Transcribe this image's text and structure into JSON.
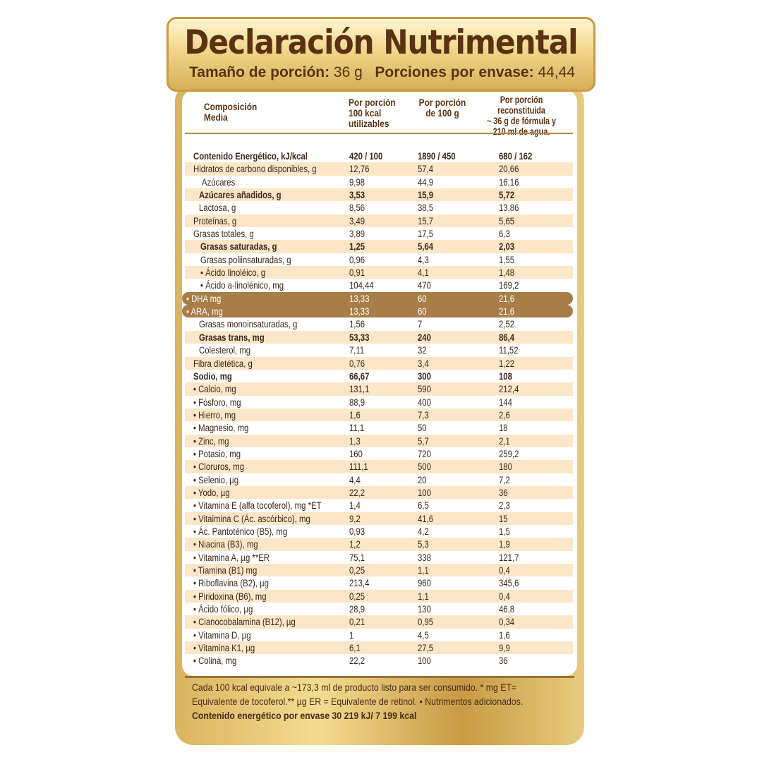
{
  "header": {
    "title": "Declaración Nutrimental",
    "portion_label": "Tamaño de porción:",
    "portion_value": "36 g",
    "servings_label": "Porciones por envase:",
    "servings_value": "44,44"
  },
  "columns": {
    "c0": [
      "Composición",
      "Media"
    ],
    "c1": [
      "Por porción",
      "100 kcal",
      "utilizables"
    ],
    "c2": [
      "Por porción",
      "de 100 g"
    ],
    "c3": [
      "Por porción reconstituida",
      "~ 36 g de fórmula y",
      "210 ml de agua."
    ]
  },
  "rows": [
    {
      "name": "Contenido Energético, kJ/kcal",
      "v1": "420 / 100",
      "v2": "1890 / 450",
      "v3": "680 / 162",
      "style": "bold",
      "indent": 0
    },
    {
      "name": "Hidratos de carbono disponibles, g",
      "v1": "12,76",
      "v2": "57,4",
      "v3": "20,66",
      "style": "shade",
      "indent": 0
    },
    {
      "name": "Azúcares",
      "v1": "9,98",
      "v2": "44,9",
      "v3": "16,16",
      "style": "",
      "indent": 12
    },
    {
      "name": "Azúcares añadidos, g",
      "v1": "3,53",
      "v2": "15,9",
      "v3": "5,72",
      "style": "shade bold",
      "indent": 8
    },
    {
      "name": "Lactosa, g",
      "v1": "8,56",
      "v2": "38,5",
      "v3": "13,86",
      "style": "",
      "indent": 8
    },
    {
      "name": "Proteínas, g",
      "v1": "3,49",
      "v2": "15,7",
      "v3": "5,65",
      "style": "shade",
      "indent": 0
    },
    {
      "name": "Grasas totales, g",
      "v1": "3,89",
      "v2": "17,5",
      "v3": "6,3",
      "style": "",
      "indent": 0
    },
    {
      "name": "Grasas saturadas, g",
      "v1": "1,25",
      "v2": "5,64",
      "v3": "2,03",
      "style": "shade bold",
      "indent": 10
    },
    {
      "name": "Grasas poliinsaturadas, g",
      "v1": "0,96",
      "v2": "4,3",
      "v3": "1,55",
      "style": "",
      "indent": 10
    },
    {
      "name": "• Ácido linoléico, g",
      "v1": "0,91",
      "v2": "4,1",
      "v3": "1,48",
      "style": "shade",
      "indent": 10
    },
    {
      "name": "• Ácido a-linolénico, mg",
      "v1": "104,44",
      "v2": "470",
      "v3": "169,2",
      "style": "",
      "indent": 10
    },
    {
      "name": "•  DHA mg",
      "v1": "13,33",
      "v2": "60",
      "v3": "21,6",
      "style": "pill",
      "indent": 0
    },
    {
      "name": "•  ARA, mg",
      "v1": "13,33",
      "v2": "60",
      "v3": "21,6",
      "style": "pill",
      "indent": 0
    },
    {
      "name": "Grasas monoinsaturadas, g",
      "v1": "1,56",
      "v2": "7",
      "v3": "2,52",
      "style": "",
      "indent": 8
    },
    {
      "name": "Grasas trans, mg",
      "v1": "53,33",
      "v2": "240",
      "v3": "86,4",
      "style": "shade bold",
      "indent": 8
    },
    {
      "name": "Colesterol, mg",
      "v1": "7,11",
      "v2": "32",
      "v3": "11,52",
      "style": "",
      "indent": 8
    },
    {
      "name": "Fibra dietética, g",
      "v1": "0,76",
      "v2": "3,4",
      "v3": "1,22",
      "style": "shade",
      "indent": 0
    },
    {
      "name": "Sodio, mg",
      "v1": "66,67",
      "v2": "300",
      "v3": "108",
      "style": "bold",
      "indent": 0
    },
    {
      "name": "• Calcio, mg",
      "v1": "131,1",
      "v2": "590",
      "v3": "212,4",
      "style": "shade",
      "indent": 0
    },
    {
      "name": "• Fósforo, mg",
      "v1": "88,9",
      "v2": "400",
      "v3": "144",
      "style": "",
      "indent": 0
    },
    {
      "name": "• Hierro, mg",
      "v1": "1,6",
      "v2": "7,3",
      "v3": "2,6",
      "style": "shade",
      "indent": 0
    },
    {
      "name": "• Magnesio, mg",
      "v1": "11,1",
      "v2": "50",
      "v3": "18",
      "style": "",
      "indent": 0
    },
    {
      "name": "• Zinc, mg",
      "v1": "1,3",
      "v2": "5,7",
      "v3": "2,1",
      "style": "shade",
      "indent": 0
    },
    {
      "name": "• Potasio, mg",
      "v1": "160",
      "v2": "720",
      "v3": "259,2",
      "style": "",
      "indent": 0
    },
    {
      "name": "• Cloruros, mg",
      "v1": "111,1",
      "v2": "500",
      "v3": "180",
      "style": "shade",
      "indent": 0
    },
    {
      "name": "• Selenio, µg",
      "v1": "4,4",
      "v2": "20",
      "v3": "7,2",
      "style": "",
      "indent": 0
    },
    {
      "name": "• Yodo, µg",
      "v1": "22,2",
      "v2": "100",
      "v3": "36",
      "style": "shade",
      "indent": 0
    },
    {
      "name": "• Vitamina E (alfa tocoferol), mg *ET",
      "v1": "1,4",
      "v2": "6,5",
      "v3": "2,3",
      "style": "",
      "indent": 0
    },
    {
      "name": "• Vitaimina C (Ác. ascórbico), mg",
      "v1": "9,2",
      "v2": "41,6",
      "v3": "15",
      "style": "shade",
      "indent": 0
    },
    {
      "name": "• Ác. Pantoténico (B5), mg",
      "v1": "0,93",
      "v2": "4,2",
      "v3": "1,5",
      "style": "",
      "indent": 0
    },
    {
      "name": "• Niacina (B3), mg",
      "v1": "1,2",
      "v2": "5,3",
      "v3": "1,9",
      "style": "shade",
      "indent": 0
    },
    {
      "name": "• Vitamina A, µg **ER",
      "v1": "75,1",
      "v2": "338",
      "v3": "121,7",
      "style": "",
      "indent": 0
    },
    {
      "name": "• Tiamina (B1) mg",
      "v1": "0,25",
      "v2": "1,1",
      "v3": "0,4",
      "style": "shade",
      "indent": 0
    },
    {
      "name": "• Riboflavina (B2), µg",
      "v1": "213,4",
      "v2": "960",
      "v3": "345,6",
      "style": "",
      "indent": 0
    },
    {
      "name": "• Piridoxina (B6), mg",
      "v1": "0,25",
      "v2": "1,1",
      "v3": "0,4",
      "style": "shade",
      "indent": 0
    },
    {
      "name": "• Ácido fólico, µg",
      "v1": "28,9",
      "v2": "130",
      "v3": "46,8",
      "style": "",
      "indent": 0
    },
    {
      "name": "• Cianocobalamina (B12), µg",
      "v1": "0,21",
      "v2": "0,95",
      "v3": "0,34",
      "style": "shade",
      "indent": 0
    },
    {
      "name": "• Vitamina D, µg",
      "v1": "1",
      "v2": "4,5",
      "v3": "1,6",
      "style": "",
      "indent": 0
    },
    {
      "name": "• Vitamina K1, µg",
      "v1": "6,1",
      "v2": "27,5",
      "v3": "9,9",
      "style": "shade",
      "indent": 0
    },
    {
      "name": "• Colina, mg",
      "v1": "22,2",
      "v2": "100",
      "v3": "36",
      "style": "",
      "indent": 0
    }
  ],
  "footer": {
    "note": "Cada 100 kcal equivale a ~173,3 ml de producto listo para ser consumido. * mg ET= Equivalente de tocoferol.** µg ER = Equivalente de retinol. • Nutrimentos adicionados.",
    "total": "Contenido energético por envase 30 219 kJ/ 7 199 kcal"
  },
  "colors": {
    "brown": "#5a3213",
    "gold": "#d9b460",
    "row_shade": "#fbe6c8",
    "pill": "#a97d48"
  }
}
